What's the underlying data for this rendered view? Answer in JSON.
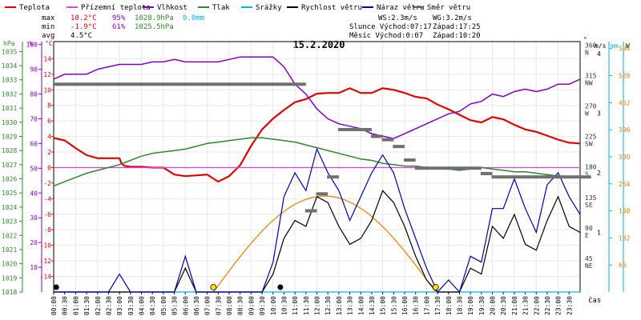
{
  "legend": [
    {
      "label": "Teplota",
      "color": "#e00000"
    },
    {
      "label": "Přízemní teplota",
      "color": "#e040e0"
    },
    {
      "label": "Vlhkost",
      "color": "#8000c0"
    },
    {
      "label": "Tlak",
      "color": "#2a8a2a"
    },
    {
      "label": "Srážky",
      "color": "#00b0e0"
    },
    {
      "label": "Rychlost větru",
      "color": "#000000"
    },
    {
      "label": "Náraz větru",
      "color": "#0000a0"
    },
    {
      "label": "Směr větru",
      "color": "#606060"
    }
  ],
  "stats": {
    "max_label": "max",
    "max_temp": "10.2°C",
    "max_hum": "95%",
    "max_press": "1028.9hPa",
    "max_rain": "0.0mm",
    "min_label": "min",
    "min_temp": "-1.9°C",
    "min_hum": "61%",
    "min_press": "1025.5hPa",
    "avg_label": "avg",
    "avg_temp": "4.5°C",
    "ws": "WS:2.3m/s",
    "wg": "WG:3.2m/s",
    "sun": "Slunce Východ:07:17",
    "sun_set": "Západ:17:25",
    "moon": "Měsíc  Východ:0:07",
    "moon_set": "Západ:10:20"
  },
  "date": "15.2.2020",
  "xlabel": "čas",
  "colors": {
    "temp": "#e00000",
    "ground": "#e040e0",
    "hum": "#8000c0",
    "press": "#2a8a2a",
    "rain": "#00b0e0",
    "speed": "#000000",
    "gust": "#0000a0",
    "dir": "#707070",
    "sun": "#e08000"
  },
  "chart_data": {
    "type": "line",
    "title": "15.2.2020",
    "x_unit": "hour of day",
    "x_ticks": [
      "00:00",
      "00:30",
      "01:00",
      "01:30",
      "02:00",
      "02:30",
      "03:00",
      "03:30",
      "04:00",
      "04:30",
      "05:00",
      "05:30",
      "06:00",
      "06:30",
      "07:00",
      "07:30",
      "08:00",
      "08:30",
      "09:00",
      "09:30",
      "10:00",
      "10:30",
      "11:00",
      "11:30",
      "12:00",
      "12:30",
      "13:00",
      "13:30",
      "14:00",
      "14:30",
      "15:00",
      "15:30",
      "16:00",
      "16:30",
      "17:00",
      "17:30",
      "18:00",
      "18:30",
      "19:00",
      "19:30",
      "20:00",
      "20:30",
      "21:00",
      "21:30",
      "22:00",
      "22:30",
      "23:00",
      "23:30"
    ],
    "axes": {
      "pressure_hPa": {
        "ticks": [
          1018,
          1019,
          1020,
          1021,
          1022,
          1023,
          1024,
          1025,
          1026,
          1027,
          1028,
          1029,
          1030,
          1031,
          1032,
          1033,
          1034,
          1035
        ],
        "range": [
          1018,
          1035.7
        ]
      },
      "humidity_pct": {
        "ticks": [
          10,
          20,
          30,
          40,
          50,
          60,
          70,
          80,
          90,
          100
        ],
        "range": [
          0,
          101.2
        ]
      },
      "temperature_C": {
        "ticks": [
          -14,
          -12,
          -10,
          -8,
          -6,
          -4,
          -2,
          0,
          2,
          4,
          6,
          8,
          10,
          12,
          14
        ],
        "range": [
          -16,
          16.2
        ]
      },
      "wind_dir_deg": {
        "ticks": [
          45,
          90,
          135,
          180,
          225,
          270,
          315,
          360
        ],
        "labels": [
          "NE",
          "E",
          "SE",
          "S",
          "SW",
          "W",
          "NW",
          "N"
        ],
        "range": [
          0,
          370
        ]
      },
      "wind_ms": {
        "ticks": [
          1,
          2,
          3,
          4
        ],
        "range": [
          0,
          4.2
        ]
      },
      "rain_mm": {
        "ticks": [
          66,
          132,
          198,
          264,
          330,
          396,
          462,
          528,
          594
        ],
        "range": [
          0,
          611
        ]
      }
    },
    "series": [
      {
        "name": "Teplota",
        "axis": "temperature_C",
        "x": [
          0,
          0.5,
          1,
          1.5,
          2,
          2.5,
          3,
          3.1,
          3.25,
          3.5,
          4,
          4.5,
          5,
          5.5,
          6,
          6.5,
          7,
          7.5,
          8,
          8.5,
          9,
          9.5,
          10,
          10.5,
          11,
          11.5,
          12,
          12.5,
          13,
          13.5,
          14,
          14.5,
          15,
          15.5,
          16,
          16.5,
          17,
          17.5,
          18,
          18.5,
          19,
          19.5,
          20,
          20.5,
          21,
          21.5,
          22,
          22.5,
          23,
          23.5,
          24
        ],
        "y": [
          3.8,
          3.5,
          2.5,
          1.6,
          1.2,
          1.2,
          1.2,
          0.5,
          0.2,
          0.1,
          0.1,
          0,
          0,
          -0.9,
          -1.1,
          -1.0,
          -0.9,
          -1.8,
          -1.1,
          0.3,
          2.8,
          4.9,
          6.3,
          7.4,
          8.4,
          8.8,
          9.5,
          9.6,
          9.6,
          10.2,
          9.6,
          9.6,
          10.2,
          10.0,
          9.6,
          9.1,
          8.9,
          8.1,
          7.5,
          6.8,
          6.1,
          5.8,
          6.5,
          6.2,
          5.5,
          4.9,
          4.6,
          4.1,
          3.6,
          3.2,
          3.1
        ]
      },
      {
        "name": "Přízemní teplota",
        "axis": "temperature_C",
        "x": [
          0,
          24
        ],
        "y": [
          0,
          0
        ]
      },
      {
        "name": "Vlhkost",
        "axis": "humidity_pct",
        "x": [
          0,
          0.5,
          1,
          1.5,
          2,
          2.5,
          3,
          3.5,
          4,
          4.5,
          5,
          5.5,
          6,
          6.5,
          7,
          7.5,
          8,
          8.5,
          9,
          9.5,
          10,
          10.5,
          11,
          11.5,
          12,
          12.5,
          13,
          13.5,
          14,
          14.5,
          15,
          15.5,
          16,
          16.5,
          17,
          17.5,
          18,
          18.5,
          19,
          19.5,
          20,
          20.5,
          21,
          21.5,
          22,
          22.5,
          23,
          23.5,
          24
        ],
        "y": [
          86,
          88,
          88,
          88,
          90,
          91,
          92,
          92,
          92,
          93,
          93,
          94,
          93,
          93,
          93,
          93,
          94,
          95,
          95,
          95,
          95,
          91,
          84,
          80,
          74,
          70,
          68,
          67,
          66,
          64,
          63,
          62,
          64,
          66,
          68,
          70,
          72,
          73,
          76,
          77,
          80,
          79,
          81,
          82,
          81,
          82,
          84,
          84,
          86
        ]
      },
      {
        "name": "Tlak",
        "axis": "pressure_hPa",
        "x": [
          0,
          0.5,
          1,
          1.5,
          2,
          2.5,
          3,
          3.5,
          4,
          4.5,
          5,
          5.5,
          6,
          6.5,
          7,
          7.5,
          8,
          8.5,
          9,
          9.5,
          10,
          10.5,
          11,
          11.5,
          12,
          12.5,
          13,
          13.5,
          14,
          14.5,
          15,
          15.5,
          16,
          16.5,
          17,
          17.5,
          18,
          18.5,
          19,
          19.5,
          20,
          20.5,
          21,
          21.5,
          22,
          22.5,
          23,
          23.5,
          24
        ],
        "y": [
          1025.5,
          1025.8,
          1026.1,
          1026.4,
          1026.6,
          1026.8,
          1027.0,
          1027.3,
          1027.6,
          1027.8,
          1027.9,
          1028.0,
          1028.1,
          1028.3,
          1028.5,
          1028.6,
          1028.7,
          1028.8,
          1028.9,
          1028.9,
          1028.8,
          1028.7,
          1028.6,
          1028.4,
          1028.2,
          1028.0,
          1027.8,
          1027.6,
          1027.4,
          1027.3,
          1027.1,
          1027.0,
          1026.9,
          1026.9,
          1026.8,
          1026.8,
          1026.7,
          1026.6,
          1026.7,
          1026.8,
          1026.7,
          1026.6,
          1026.5,
          1026.5,
          1026.4,
          1026.3,
          1026.2,
          1026.1,
          1026.1
        ]
      },
      {
        "name": "Srážky",
        "axis": "rain_mm",
        "x": [
          0,
          24
        ],
        "y": [
          0,
          0
        ]
      },
      {
        "name": "Rychlost větru",
        "axis": "wind_ms",
        "x": [
          0,
          0.5,
          1,
          1.5,
          2,
          2.5,
          3,
          3.5,
          4,
          4.5,
          5,
          5.5,
          6,
          6.5,
          7,
          7.5,
          8,
          8.5,
          9,
          9.5,
          10,
          10.5,
          11,
          11.5,
          12,
          12.5,
          13,
          13.5,
          14,
          14.5,
          15,
          15.5,
          16,
          16.5,
          17,
          17.5,
          18,
          18.5,
          19,
          19.5,
          20,
          20.5,
          21,
          21.5,
          22,
          22.5,
          23,
          23.5,
          24
        ],
        "y": [
          0,
          0,
          0,
          0,
          0,
          0,
          0,
          0,
          0,
          0,
          0,
          0,
          0.4,
          0,
          0,
          0,
          0,
          0,
          0,
          0,
          0.3,
          0.9,
          1.2,
          1.1,
          1.6,
          1.5,
          1.1,
          0.8,
          0.9,
          1.2,
          1.7,
          1.5,
          1.1,
          0.6,
          0.2,
          0,
          0,
          0,
          0.4,
          0.3,
          1.1,
          0.9,
          1.3,
          0.8,
          0.7,
          1.2,
          1.6,
          1.1,
          1.0
        ]
      },
      {
        "name": "Náraz větru",
        "axis": "wind_ms",
        "x": [
          0,
          0.5,
          1,
          1.5,
          2,
          2.5,
          3,
          3.5,
          4,
          4.5,
          5,
          5.5,
          6,
          6.5,
          7,
          7.5,
          8,
          8.5,
          9,
          9.5,
          10,
          10.5,
          11,
          11.5,
          12,
          12.5,
          13,
          13.5,
          14,
          14.5,
          15,
          15.5,
          16,
          16.5,
          17,
          17.5,
          18,
          18.5,
          19,
          19.5,
          20,
          20.5,
          21,
          21.5,
          22,
          22.5,
          23,
          23.5,
          24
        ],
        "y": [
          0,
          0,
          0,
          0,
          0,
          0,
          0.3,
          0,
          0,
          0,
          0,
          0,
          0.6,
          0,
          0,
          0,
          0,
          0,
          0,
          0,
          0.5,
          1.6,
          2.0,
          1.7,
          2.4,
          2.0,
          1.7,
          1.2,
          1.6,
          2.0,
          2.3,
          2.0,
          1.4,
          0.9,
          0.4,
          0,
          0.2,
          0,
          0.6,
          0.5,
          1.4,
          1.4,
          1.9,
          1.4,
          1.0,
          1.8,
          2.0,
          1.6,
          1.3
        ]
      },
      {
        "name": "Směr větru",
        "axis": "wind_dir_deg",
        "x": [
          0,
          0.5,
          1,
          1.5,
          2,
          2.5,
          3,
          3.5,
          4,
          4.5,
          5,
          5.5,
          6,
          6.5,
          7,
          7.5,
          8,
          8.5,
          9,
          9.5,
          10,
          10.5,
          11,
          11.5,
          12,
          12.5,
          13,
          13.5,
          14,
          14.5,
          15,
          15.5,
          16,
          16.5,
          17,
          17.5,
          18,
          18.5,
          19,
          19.5,
          20,
          20.5,
          21,
          21.5,
          22,
          22.5,
          23,
          23.5,
          24
        ],
        "y": [
          307,
          307,
          307,
          307,
          307,
          307,
          307,
          307,
          307,
          307,
          307,
          307,
          307,
          307,
          307,
          307,
          307,
          307,
          307,
          307,
          307,
          307,
          307,
          120,
          145,
          170,
          240,
          240,
          240,
          230,
          225,
          215,
          195,
          183,
          183,
          183,
          183,
          183,
          183,
          175,
          170,
          170,
          170,
          170,
          170,
          170,
          170,
          170,
          170
        ]
      }
    ]
  }
}
